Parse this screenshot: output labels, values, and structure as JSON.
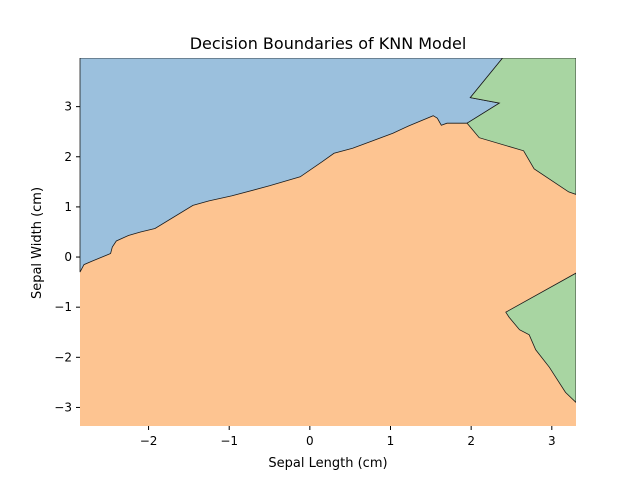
{
  "chart_data": {
    "type": "area",
    "title": "Decision Boundaries of KNN Model",
    "xlabel": "Sepal Length (cm)",
    "ylabel": "Sepal Width (cm)",
    "xlim": [
      -2.85,
      3.3
    ],
    "ylim": [
      -3.37,
      3.97
    ],
    "xticks": [
      -2,
      -1,
      0,
      1,
      2,
      3
    ],
    "yticks": [
      -3,
      -2,
      -1,
      0,
      1,
      2,
      3
    ],
    "tick_labels_x": [
      "−2",
      "−1",
      "0",
      "1",
      "2",
      "3"
    ],
    "tick_labels_y": [
      "−3",
      "−2",
      "−1",
      "0",
      "1",
      "2",
      "3"
    ],
    "grid": false,
    "background_color": "#fdc491",
    "regions": [
      {
        "color": "#9bc0dd",
        "points": [
          [
            -2.85,
            3.97
          ],
          [
            2.39,
            3.97
          ],
          [
            1.99,
            3.18
          ],
          [
            2.35,
            3.07
          ],
          [
            1.95,
            2.67
          ],
          [
            1.7,
            2.67
          ],
          [
            1.63,
            2.63
          ],
          [
            1.58,
            2.77
          ],
          [
            1.53,
            2.82
          ],
          [
            1.23,
            2.62
          ],
          [
            1.03,
            2.47
          ],
          [
            0.78,
            2.32
          ],
          [
            0.53,
            2.17
          ],
          [
            0.3,
            2.07
          ],
          [
            0.15,
            1.9
          ],
          [
            -0.12,
            1.6
          ],
          [
            -0.5,
            1.42
          ],
          [
            -0.97,
            1.22
          ],
          [
            -1.25,
            1.12
          ],
          [
            -1.45,
            1.03
          ],
          [
            -1.92,
            0.57
          ],
          [
            -2.1,
            0.5
          ],
          [
            -2.25,
            0.43
          ],
          [
            -2.4,
            0.32
          ],
          [
            -2.45,
            0.2
          ],
          [
            -2.47,
            0.07
          ],
          [
            -2.5,
            0.05
          ],
          [
            -2.7,
            -0.08
          ],
          [
            -2.8,
            -0.15
          ],
          [
            -2.85,
            -0.3
          ]
        ]
      },
      {
        "color": "#a8d5a2",
        "points": [
          [
            2.39,
            3.97
          ],
          [
            3.3,
            3.97
          ],
          [
            3.3,
            1.25
          ],
          [
            3.21,
            1.3
          ],
          [
            2.78,
            1.76
          ],
          [
            2.65,
            2.12
          ],
          [
            2.1,
            2.38
          ],
          [
            1.95,
            2.67
          ],
          [
            2.35,
            3.07
          ],
          [
            1.99,
            3.18
          ]
        ]
      },
      {
        "color": "#a8d5a2",
        "points": [
          [
            3.3,
            -0.32
          ],
          [
            3.3,
            -2.9
          ],
          [
            3.17,
            -2.7
          ],
          [
            2.97,
            -2.2
          ],
          [
            2.8,
            -1.85
          ],
          [
            2.72,
            -1.55
          ],
          [
            2.6,
            -1.45
          ],
          [
            2.47,
            -1.2
          ],
          [
            2.43,
            -1.1
          ]
        ]
      }
    ]
  }
}
